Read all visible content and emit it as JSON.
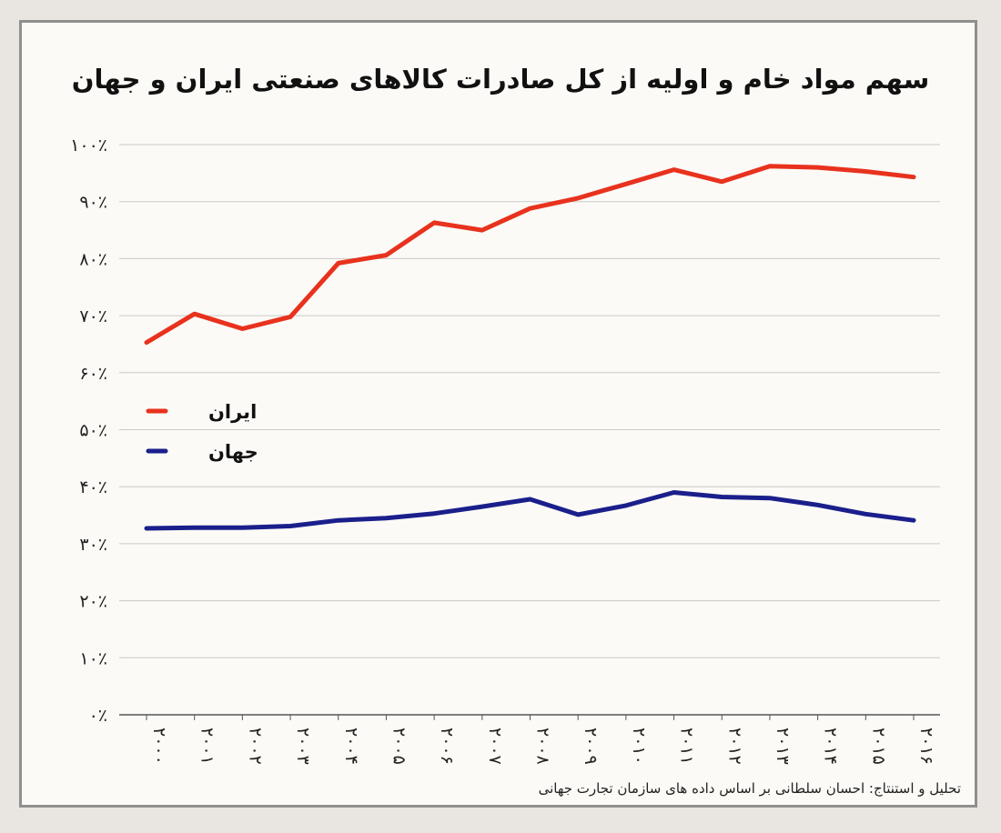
{
  "title": "سهم مواد خام و اولیه از کل صادرات کالاهای صنعتی  ایران و جهان",
  "credit": "تحلیل و استنتاج: احسان سلطانی بر اساس داده های سازمان تجارت جهانی",
  "chart_data": {
    "type": "line",
    "title": "سهم مواد خام و اولیه از کل صادرات کالاهای صنعتی  ایران و جهان",
    "x": [
      "۲۰۰۰",
      "۲۰۰۱",
      "۲۰۰۲",
      "۲۰۰۳",
      "۲۰۰۴",
      "۲۰۰۵",
      "۲۰۰۶",
      "۲۰۰۷",
      "۲۰۰۸",
      "۲۰۰۹",
      "۲۰۱۰",
      "۲۰۱۱",
      "۲۰۱۲",
      "۲۰۱۳",
      "۲۰۱۴",
      "۲۰۱۵",
      "۲۰۱۶"
    ],
    "y_ticks": [
      "۰٪",
      "۱۰٪",
      "۲۰٪",
      "۳۰٪",
      "۴۰٪",
      "۵۰٪",
      "۶۰٪",
      "۷۰٪",
      "۸۰٪",
      "۹۰٪",
      "۱۰۰٪"
    ],
    "ylim": [
      0,
      100
    ],
    "grid": true,
    "legend_position": "left",
    "series": [
      {
        "name": "ایران",
        "color": "#e8321e",
        "values": [
          65.3,
          70.3,
          67.7,
          69.8,
          79.2,
          80.6,
          86.3,
          85.0,
          88.8,
          90.6,
          93.1,
          95.6,
          93.5,
          96.2,
          96.0,
          95.3,
          94.3
        ]
      },
      {
        "name": "جهان",
        "color": "#1a1f8c",
        "values": [
          32.7,
          32.8,
          32.8,
          33.1,
          34.1,
          34.5,
          35.3,
          36.5,
          37.8,
          35.1,
          36.7,
          39.0,
          38.2,
          38.0,
          36.8,
          35.2,
          34.1
        ]
      }
    ]
  }
}
